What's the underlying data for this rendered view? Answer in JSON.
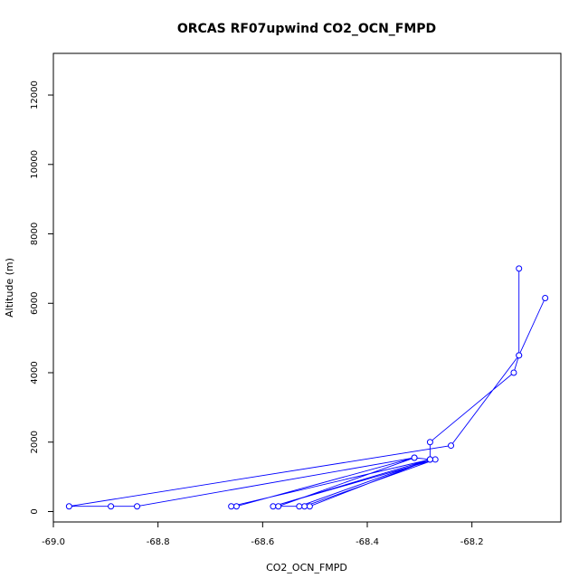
{
  "chart_data": {
    "type": "line",
    "title": "ORCAS RF07upwind CO2_OCN_FMPD",
    "xlabel": "CO2_OCN_FMPD",
    "ylabel": "Altitude (m)",
    "xlim": [
      -69.0,
      -68.03
    ],
    "ylim": [
      -300,
      13200
    ],
    "xticks": [
      -69.0,
      -68.8,
      -68.6,
      -68.4,
      -68.2
    ],
    "xtick_labels": [
      "-69.0",
      "-68.8",
      "-68.6",
      "-68.4",
      "-68.2"
    ],
    "yticks": [
      0,
      2000,
      4000,
      6000,
      8000,
      10000,
      12000
    ],
    "ytick_labels": [
      "0",
      "2000",
      "4000",
      "6000",
      "8000",
      "10000",
      "12000"
    ],
    "grid": false,
    "color": "#0000ff",
    "series": [
      {
        "x": [
          -68.11,
          -68.11,
          -68.12,
          -68.28,
          -68.28,
          -68.31,
          -68.65,
          -68.66,
          -68.28,
          -68.58,
          -68.27,
          -68.52,
          -68.51,
          -68.28,
          -68.53,
          -68.57,
          -68.31,
          -68.84,
          -68.89,
          -68.97,
          -68.24,
          -68.11,
          -68.06
        ],
        "y": [
          7000,
          4500,
          4000,
          2000,
          1500,
          1550,
          150,
          150,
          1500,
          150,
          1500,
          150,
          150,
          1500,
          150,
          150,
          1550,
          150,
          150,
          150,
          1900,
          4500,
          6150
        ]
      }
    ]
  }
}
